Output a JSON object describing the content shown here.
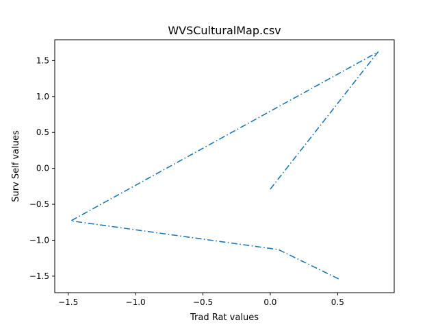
{
  "chart_data": {
    "type": "line",
    "title": "WVSCulturalMap.csv",
    "xlabel": "Trad Rat values",
    "ylabel": "Surv Self values",
    "xlim": [
      -1.6,
      0.92
    ],
    "ylim": [
      -1.73,
      1.79
    ],
    "x_ticks": [
      -1.5,
      -1.0,
      -0.5,
      0.0,
      0.5
    ],
    "x_tick_labels": [
      "−1.5",
      "−1.0",
      "−0.5",
      "0.0",
      "0.5"
    ],
    "y_ticks": [
      -1.5,
      -1.0,
      -0.5,
      0.0,
      0.5,
      1.0,
      1.5
    ],
    "y_tick_labels": [
      "−1.5",
      "−1.0",
      "−0.5",
      "0.0",
      "0.5",
      "1.0",
      "1.5"
    ],
    "grid": false,
    "series": [
      {
        "color": "#1f77b4",
        "line_style": "dash-dot",
        "x": [
          0.0,
          0.8,
          -1.48,
          0.06,
          0.52
        ],
        "y": [
          -0.29,
          1.62,
          -0.73,
          -1.13,
          -1.55
        ]
      }
    ]
  }
}
